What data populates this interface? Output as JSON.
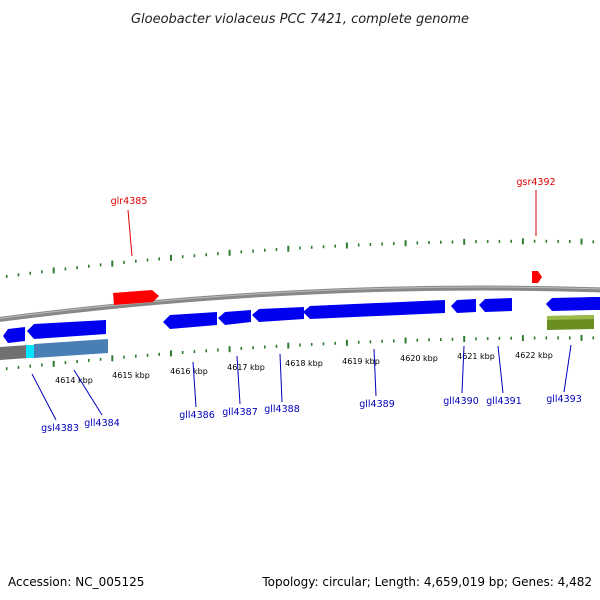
{
  "title": "Gloeobacter violaceus PCC 7421, complete genome",
  "footer": {
    "accession": "Accession: NC_005125",
    "summary": "Topology: circular; Length: 4,659,019 bp; Genes: 4,482"
  },
  "colors": {
    "forward_gene": "#ff0000",
    "reverse_gene": "#0000ff",
    "rna": "#6b8e23",
    "backbone": "#888888",
    "tick": "#2e7d32",
    "label_blue": "#0000bb",
    "label_red": "#dd0000"
  },
  "scale_labels": [
    "4614 kbp",
    "4615 kbp",
    "4616 kbp",
    "4617 kbp",
    "4618 kbp",
    "4619 kbp",
    "4620 kbp",
    "4621 kbp",
    "4622 kbp"
  ],
  "gene_labels": [
    {
      "name": "glr4385",
      "strand": "forward"
    },
    {
      "name": "gsr4392",
      "strand": "forward"
    },
    {
      "name": "gsl4383",
      "strand": "reverse"
    },
    {
      "name": "gll4384",
      "strand": "reverse"
    },
    {
      "name": "gll4386",
      "strand": "reverse"
    },
    {
      "name": "gll4387",
      "strand": "reverse"
    },
    {
      "name": "gll4388",
      "strand": "reverse"
    },
    {
      "name": "gll4389",
      "strand": "reverse"
    },
    {
      "name": "gll4390",
      "strand": "reverse"
    },
    {
      "name": "gll4391",
      "strand": "reverse"
    },
    {
      "name": "gll4393",
      "strand": "reverse"
    }
  ]
}
